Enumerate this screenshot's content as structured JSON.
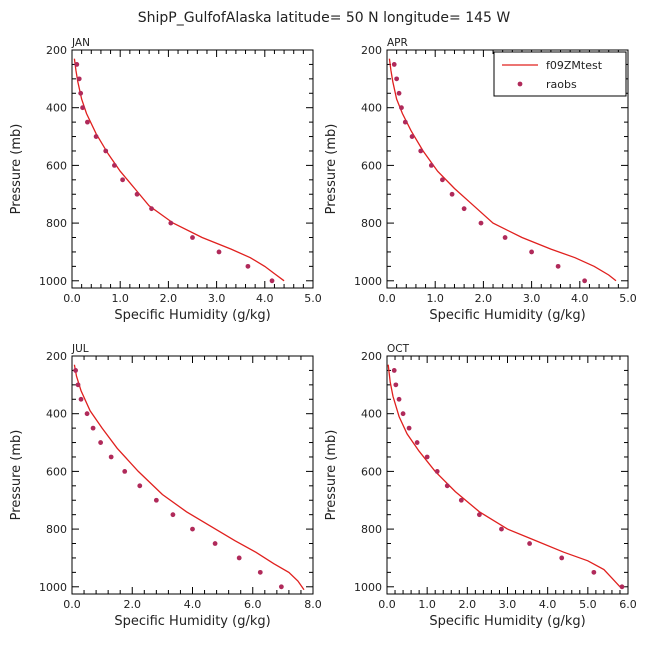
{
  "figure_title": "ShipP_GulfofAlaska  latitude= 50 N longitude= 145 W",
  "colors": {
    "model": "#e0201e",
    "obs": "#b02a5a",
    "axis": "#000000"
  },
  "chart_data": [
    {
      "type": "line",
      "panel": "JAN",
      "title": "JAN",
      "xlabel": "Specific Humidity (g/kg)",
      "ylabel": "Pressure (mb)",
      "xlim": [
        0,
        5
      ],
      "ylim": [
        200,
        1025
      ],
      "y_inverted": true,
      "xticks": [
        0,
        1,
        2,
        3,
        4,
        5
      ],
      "xtick_labels": [
        "0.0",
        "1.0",
        "2.0",
        "3.0",
        "4.0",
        "5.0"
      ],
      "yticks": [
        200,
        400,
        600,
        800,
        1000
      ],
      "ytick_labels": [
        "200",
        "400",
        "600",
        "800",
        "1000"
      ],
      "series": [
        {
          "name": "f09ZMtest",
          "kind": "line",
          "x": [
            0.05,
            0.08,
            0.12,
            0.2,
            0.3,
            0.5,
            0.75,
            1.0,
            1.3,
            1.6,
            2.1,
            2.7,
            3.3,
            3.7,
            4.0,
            4.2,
            4.4
          ],
          "y": [
            230,
            270,
            310,
            370,
            420,
            490,
            560,
            620,
            680,
            740,
            800,
            850,
            890,
            920,
            950,
            975,
            1000
          ]
        },
        {
          "name": "raobs",
          "kind": "scatter",
          "x": [
            0.1,
            0.15,
            0.18,
            0.22,
            0.32,
            0.5,
            0.7,
            0.88,
            1.05,
            1.35,
            1.65,
            2.05,
            2.5,
            3.05,
            3.65,
            4.15
          ],
          "y": [
            250,
            300,
            350,
            400,
            450,
            500,
            550,
            600,
            650,
            700,
            750,
            800,
            850,
            900,
            950,
            1000
          ]
        }
      ]
    },
    {
      "type": "line",
      "panel": "APR",
      "title": "APR",
      "xlabel": "Specific Humidity (g/kg)",
      "ylabel": "Pressure (mb)",
      "xlim": [
        0,
        5
      ],
      "ylim": [
        200,
        1025
      ],
      "y_inverted": true,
      "xticks": [
        0,
        1,
        2,
        3,
        4,
        5
      ],
      "xtick_labels": [
        "0.0",
        "1.0",
        "2.0",
        "3.0",
        "4.0",
        "5.0"
      ],
      "yticks": [
        200,
        400,
        600,
        800,
        1000
      ],
      "ytick_labels": [
        "200",
        "400",
        "600",
        "800",
        "1000"
      ],
      "legend": {
        "entries": [
          "f09ZMtest",
          "raobs"
        ],
        "position": "top-right"
      },
      "series": [
        {
          "name": "f09ZMtest",
          "kind": "line",
          "x": [
            0.05,
            0.08,
            0.12,
            0.2,
            0.32,
            0.5,
            0.75,
            1.05,
            1.4,
            1.8,
            2.2,
            2.8,
            3.4,
            3.9,
            4.3,
            4.6,
            4.75
          ],
          "y": [
            230,
            270,
            310,
            370,
            420,
            480,
            550,
            620,
            680,
            740,
            800,
            850,
            890,
            920,
            950,
            980,
            1000
          ]
        },
        {
          "name": "raobs",
          "kind": "scatter",
          "x": [
            0.15,
            0.2,
            0.25,
            0.3,
            0.38,
            0.52,
            0.7,
            0.92,
            1.15,
            1.35,
            1.6,
            1.95,
            2.45,
            3.0,
            3.55,
            4.1
          ],
          "y": [
            250,
            300,
            350,
            400,
            450,
            500,
            550,
            600,
            650,
            700,
            750,
            800,
            850,
            900,
            950,
            1000
          ]
        }
      ]
    },
    {
      "type": "line",
      "panel": "JUL",
      "title": "JUL",
      "xlabel": "Specific Humidity (g/kg)",
      "ylabel": "Pressure (mb)",
      "xlim": [
        0,
        8
      ],
      "ylim": [
        200,
        1025
      ],
      "y_inverted": true,
      "xticks": [
        0,
        2,
        4,
        6,
        8
      ],
      "xtick_labels": [
        "0.0",
        "2.0",
        "4.0",
        "6.0",
        "8.0"
      ],
      "yticks": [
        200,
        400,
        600,
        800,
        1000
      ],
      "ytick_labels": [
        "200",
        "400",
        "600",
        "800",
        "1000"
      ],
      "series": [
        {
          "name": "f09ZMtest",
          "kind": "line",
          "x": [
            0.08,
            0.15,
            0.3,
            0.6,
            1.0,
            1.5,
            2.2,
            3.0,
            3.8,
            4.6,
            5.4,
            6.1,
            6.7,
            7.2,
            7.5,
            7.7
          ],
          "y": [
            230,
            270,
            320,
            390,
            450,
            520,
            600,
            680,
            740,
            790,
            840,
            880,
            920,
            950,
            980,
            1010
          ]
        },
        {
          "name": "raobs",
          "kind": "scatter",
          "x": [
            0.12,
            0.2,
            0.3,
            0.5,
            0.7,
            0.95,
            1.3,
            1.75,
            2.25,
            2.8,
            3.35,
            4.0,
            4.75,
            5.55,
            6.25,
            6.95
          ],
          "y": [
            250,
            300,
            350,
            400,
            450,
            500,
            550,
            600,
            650,
            700,
            750,
            800,
            850,
            900,
            950,
            1000
          ]
        }
      ]
    },
    {
      "type": "line",
      "panel": "OCT",
      "title": "OCT",
      "xlabel": "Specific Humidity (g/kg)",
      "ylabel": "Pressure (mb)",
      "xlim": [
        0,
        6
      ],
      "ylim": [
        200,
        1025
      ],
      "y_inverted": true,
      "xticks": [
        0,
        1,
        2,
        3,
        4,
        5,
        6
      ],
      "xtick_labels": [
        "0.0",
        "1.0",
        "2.0",
        "3.0",
        "4.0",
        "5.0",
        "6.0"
      ],
      "yticks": [
        200,
        400,
        600,
        800,
        1000
      ],
      "ytick_labels": [
        "200",
        "400",
        "600",
        "800",
        "1000"
      ],
      "series": [
        {
          "name": "f09ZMtest",
          "kind": "line",
          "x": [
            0.03,
            0.08,
            0.15,
            0.3,
            0.5,
            0.8,
            1.2,
            1.7,
            2.3,
            3.0,
            3.7,
            4.4,
            5.0,
            5.4,
            5.6,
            5.8
          ],
          "y": [
            230,
            290,
            340,
            410,
            470,
            530,
            600,
            670,
            740,
            800,
            840,
            880,
            910,
            940,
            970,
            1000
          ]
        },
        {
          "name": "raobs",
          "kind": "scatter",
          "x": [
            0.18,
            0.22,
            0.3,
            0.4,
            0.55,
            0.75,
            1.0,
            1.25,
            1.5,
            1.85,
            2.3,
            2.85,
            3.55,
            4.35,
            5.15,
            5.85
          ],
          "y": [
            250,
            300,
            350,
            400,
            450,
            500,
            550,
            600,
            650,
            700,
            750,
            800,
            850,
            900,
            950,
            1000
          ]
        }
      ]
    }
  ]
}
